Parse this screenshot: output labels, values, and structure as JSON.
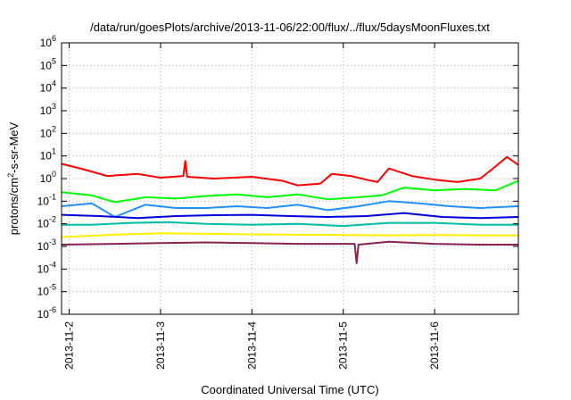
{
  "chart_data": {
    "type": "line",
    "title": "/data/run/goesPlots/archive/2013-11-06/22:00/flux/../flux/5daysMoonFluxes.txt",
    "xlabel": "Coordinated Universal Time (UTC)",
    "ylabel": {
      "base": "protons/cm",
      "sup": "2",
      "rest": "-s-sr-MeV"
    },
    "yscale": "log",
    "ylim": [
      1e-06,
      1000000.0
    ],
    "y_ticks": [
      {
        "exp": "-6",
        "value": 1e-06
      },
      {
        "exp": "-5",
        "value": 1e-05
      },
      {
        "exp": "-4",
        "value": 0.0001
      },
      {
        "exp": "-3",
        "value": 0.001
      },
      {
        "exp": "-2",
        "value": 0.01
      },
      {
        "exp": "-1",
        "value": 0.1
      },
      {
        "exp": "0",
        "value": 1
      },
      {
        "exp": "1",
        "value": 10
      },
      {
        "exp": "2",
        "value": 100
      },
      {
        "exp": "3",
        "value": 1000
      },
      {
        "exp": "4",
        "value": 10000
      },
      {
        "exp": "5",
        "value": 100000
      },
      {
        "exp": "6",
        "value": 1000000
      }
    ],
    "y_tick_base": "10",
    "xlim": [
      "2013-11-01T22:00",
      "2013-11-06T22:00"
    ],
    "x_ticks": [
      "2013-11-2",
      "2013-11-3",
      "2013-11-4",
      "2013-11-5",
      "2013-11-6"
    ],
    "x_tick_dates": [
      "2013-11-02T00:00",
      "2013-11-03T00:00",
      "2013-11-04T00:00",
      "2013-11-05T00:00",
      "2013-11-06T00:00"
    ],
    "grid": true,
    "legend": "none",
    "series": [
      {
        "color": "#ff0000",
        "x": [
          "2013-11-01T22:00",
          "2013-11-02T04:00",
          "2013-11-02T10:00",
          "2013-11-02T18:00",
          "2013-11-03T00:00",
          "2013-11-03T06:00",
          "2013-11-03T06:30",
          "2013-11-03T07:00",
          "2013-11-03T14:00",
          "2013-11-04T00:00",
          "2013-11-04T08:00",
          "2013-11-04T12:00",
          "2013-11-04T18:00",
          "2013-11-04T21:00",
          "2013-11-05T02:00",
          "2013-11-05T06:00",
          "2013-11-05T09:00",
          "2013-11-05T12:00",
          "2013-11-05T18:00",
          "2013-11-06T00:00",
          "2013-11-06T06:00",
          "2013-11-06T12:00",
          "2013-11-06T15:00",
          "2013-11-06T19:00",
          "2013-11-06T22:00"
        ],
        "y": [
          4.5,
          2.5,
          1.3,
          1.6,
          1.1,
          1.3,
          6.0,
          1.2,
          1.0,
          1.2,
          0.8,
          0.5,
          0.6,
          1.6,
          1.3,
          0.9,
          0.7,
          2.8,
          1.3,
          0.9,
          0.7,
          1.0,
          2.5,
          9.0,
          4.0
        ]
      },
      {
        "color": "#00ff00",
        "x": [
          "2013-11-01T22:00",
          "2013-11-02T06:00",
          "2013-11-02T12:00",
          "2013-11-02T20:00",
          "2013-11-03T04:00",
          "2013-11-03T12:00",
          "2013-11-03T20:00",
          "2013-11-04T04:00",
          "2013-11-04T12:00",
          "2013-11-04T20:00",
          "2013-11-05T04:00",
          "2013-11-05T10:00",
          "2013-11-05T16:00",
          "2013-11-06T00:00",
          "2013-11-06T08:00",
          "2013-11-06T16:00",
          "2013-11-06T22:00"
        ],
        "y": [
          0.25,
          0.18,
          0.09,
          0.15,
          0.13,
          0.17,
          0.2,
          0.15,
          0.2,
          0.12,
          0.15,
          0.18,
          0.4,
          0.3,
          0.35,
          0.3,
          0.8
        ]
      },
      {
        "color": "#1e90ff",
        "x": [
          "2013-11-01T22:00",
          "2013-11-02T06:00",
          "2013-11-02T12:00",
          "2013-11-02T20:00",
          "2013-11-03T04:00",
          "2013-11-03T12:00",
          "2013-11-03T20:00",
          "2013-11-04T04:00",
          "2013-11-04T12:00",
          "2013-11-04T20:00",
          "2013-11-05T04:00",
          "2013-11-05T12:00",
          "2013-11-05T20:00",
          "2013-11-06T04:00",
          "2013-11-06T12:00",
          "2013-11-06T22:00"
        ],
        "y": [
          0.06,
          0.08,
          0.02,
          0.07,
          0.05,
          0.05,
          0.06,
          0.05,
          0.07,
          0.04,
          0.06,
          0.1,
          0.08,
          0.06,
          0.05,
          0.06
        ]
      },
      {
        "color": "#0000dd",
        "x": [
          "2013-11-01T22:00",
          "2013-11-02T08:00",
          "2013-11-02T18:00",
          "2013-11-03T04:00",
          "2013-11-03T14:00",
          "2013-11-04T00:00",
          "2013-11-04T10:00",
          "2013-11-04T20:00",
          "2013-11-05T06:00",
          "2013-11-05T16:00",
          "2013-11-06T02:00",
          "2013-11-06T12:00",
          "2013-11-06T22:00"
        ],
        "y": [
          0.025,
          0.022,
          0.018,
          0.022,
          0.024,
          0.025,
          0.022,
          0.02,
          0.022,
          0.03,
          0.02,
          0.018,
          0.02
        ]
      },
      {
        "color": "#00bfa5",
        "x": [
          "2013-11-01T22:00",
          "2013-11-02T06:00",
          "2013-11-02T16:00",
          "2013-11-03T02:00",
          "2013-11-03T12:00",
          "2013-11-04T00:00",
          "2013-11-04T12:00",
          "2013-11-05T00:00",
          "2013-11-05T12:00",
          "2013-11-06T00:00",
          "2013-11-06T12:00",
          "2013-11-06T22:00"
        ],
        "y": [
          0.009,
          0.009,
          0.011,
          0.012,
          0.01,
          0.009,
          0.01,
          0.008,
          0.011,
          0.011,
          0.009,
          0.009
        ]
      },
      {
        "color": "#ffee00",
        "x": [
          "2013-11-01T22:00",
          "2013-11-02T12:00",
          "2013-11-03T00:00",
          "2013-11-03T12:00",
          "2013-11-04T00:00",
          "2013-11-04T12:00",
          "2013-11-05T00:00",
          "2013-11-05T12:00",
          "2013-11-06T00:00",
          "2013-11-06T12:00",
          "2013-11-06T22:00"
        ],
        "y": [
          0.0026,
          0.0033,
          0.0038,
          0.0036,
          0.0034,
          0.0033,
          0.0032,
          0.0031,
          0.0032,
          0.0031,
          0.0031
        ]
      },
      {
        "color": "#8b2252",
        "x": [
          "2013-11-01T22:00",
          "2013-11-02T12:00",
          "2013-11-03T00:00",
          "2013-11-03T12:00",
          "2013-11-04T00:00",
          "2013-11-04T12:00",
          "2013-11-05T00:00",
          "2013-11-05T03:00",
          "2013-11-05T03:30",
          "2013-11-05T04:00",
          "2013-11-05T12:00",
          "2013-11-06T00:00",
          "2013-11-06T12:00",
          "2013-11-06T22:00"
        ],
        "y": [
          0.0012,
          0.0013,
          0.0014,
          0.0015,
          0.0014,
          0.0013,
          0.0013,
          0.0013,
          0.00018,
          0.0012,
          0.0016,
          0.0013,
          0.0012,
          0.0012
        ]
      }
    ]
  }
}
